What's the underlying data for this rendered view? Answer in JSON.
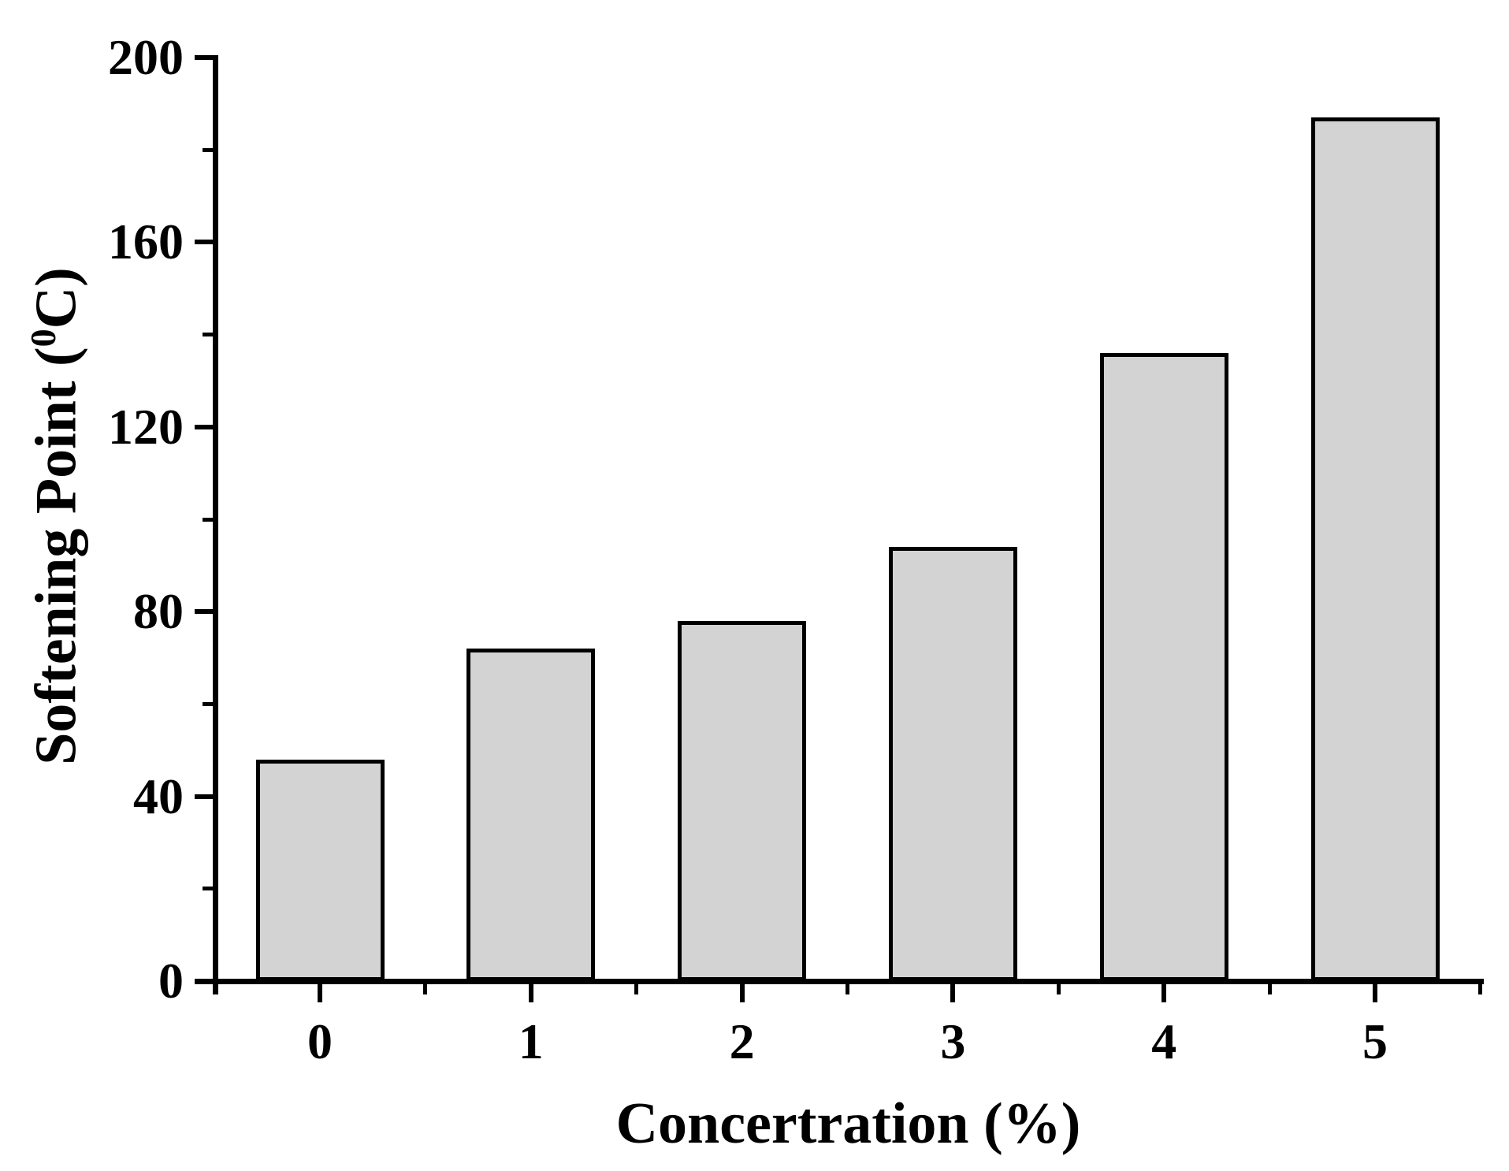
{
  "chart_data": {
    "type": "bar",
    "title": "",
    "xlabel": "Concertration (%)",
    "ylabel": {
      "prefix": "Softening Point (",
      "sup": "0",
      "suffix": "C)",
      "full_text": "Softening Point (0C)"
    },
    "categories": [
      "0",
      "1",
      "2",
      "3",
      "4",
      "5"
    ],
    "values": [
      48,
      72,
      78,
      94,
      136,
      187
    ],
    "series_name": "Softening Point",
    "ylim": [
      0,
      200
    ],
    "y_major_ticks": [
      0,
      40,
      80,
      120,
      160,
      200
    ],
    "y_minor_ticks": [
      20,
      60,
      100,
      140,
      180
    ],
    "x_minor_tick_positions": [
      -0.5,
      0.5,
      1.5,
      2.5,
      3.5,
      4.5,
      5.5
    ],
    "grid": false,
    "legend": null,
    "colors": {
      "bar_fill": "#d3d3d3",
      "bar_border": "#000000",
      "axis": "#000000",
      "text": "#000000",
      "background": "#ffffff"
    }
  }
}
